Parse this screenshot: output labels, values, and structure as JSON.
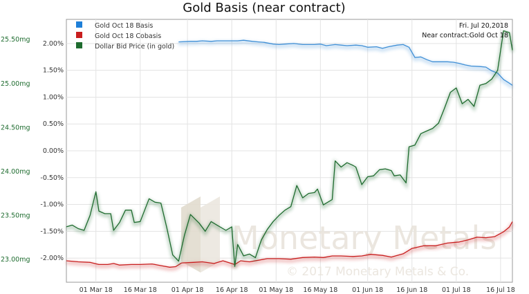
{
  "chart_data": {
    "type": "line",
    "title": "Gold Basis (near contract)",
    "x_ticks": [
      "01 Mar 18",
      "16 Mar 18",
      "01 Apr 18",
      "16 Apr 18",
      "01 May 18",
      "16 May 18",
      "01 Jun 18",
      "16 Jun 18",
      "01 Jul 18",
      "16 Jul 18"
    ],
    "x_range": [
      "2018-02-19",
      "2018-07-20"
    ],
    "y_right": {
      "ticks": [
        "-2.00%",
        "-1.50%",
        "-1.00%",
        "-0.50%",
        "0.00%",
        "0.50%",
        "1.00%",
        "1.50%",
        "2.00%"
      ],
      "tick_values": [
        -2.0,
        -1.5,
        -1.0,
        -0.5,
        0.0,
        0.5,
        1.0,
        1.5,
        2.0
      ],
      "range": [
        -2.45,
        2.45
      ]
    },
    "y_left": {
      "ticks": [
        "23.00mg",
        "23.50mg",
        "24.00mg",
        "24.50mg",
        "25.00mg",
        "25.50mg"
      ],
      "tick_values": [
        23.0,
        23.5,
        24.0,
        24.5,
        25.0,
        25.5
      ],
      "range": [
        22.74,
        25.73
      ]
    },
    "grid": true,
    "legend_position": "top-left",
    "annotations": [
      "Fri. Jul 20,2018",
      "Near contract:Gold Oct 18"
    ],
    "watermark": [
      "Monetary Metals",
      "© 2017 Monetary Metals & Co."
    ],
    "series": [
      {
        "name": "Gold Oct 18 Basis",
        "color": "#3f8fd6",
        "axis": "right",
        "points": [
          [
            "2018-03-29",
            2.03
          ],
          [
            "2018-04-02",
            2.04
          ],
          [
            "2018-04-04",
            2.04
          ],
          [
            "2018-04-06",
            2.05
          ],
          [
            "2018-04-09",
            2.04
          ],
          [
            "2018-04-11",
            2.05
          ],
          [
            "2018-04-13",
            2.05
          ],
          [
            "2018-04-16",
            2.05
          ],
          [
            "2018-04-18",
            2.05
          ],
          [
            "2018-04-20",
            2.06
          ],
          [
            "2018-04-23",
            2.04
          ],
          [
            "2018-04-25",
            2.03
          ],
          [
            "2018-04-27",
            2.02
          ],
          [
            "2018-04-30",
            1.99
          ],
          [
            "2018-05-02",
            1.98
          ],
          [
            "2018-05-04",
            1.99
          ],
          [
            "2018-05-07",
            2.0
          ],
          [
            "2018-05-10",
            1.98
          ],
          [
            "2018-05-14",
            1.98
          ],
          [
            "2018-05-16",
            1.99
          ],
          [
            "2018-05-18",
            1.96
          ],
          [
            "2018-05-21",
            1.98
          ],
          [
            "2018-05-23",
            1.97
          ],
          [
            "2018-05-25",
            1.96
          ],
          [
            "2018-05-28",
            1.97
          ],
          [
            "2018-05-30",
            1.96
          ],
          [
            "2018-06-01",
            1.93
          ],
          [
            "2018-06-04",
            1.94
          ],
          [
            "2018-06-06",
            1.91
          ],
          [
            "2018-06-08",
            1.94
          ],
          [
            "2018-06-11",
            1.97
          ],
          [
            "2018-06-13",
            1.98
          ],
          [
            "2018-06-15",
            1.93
          ],
          [
            "2018-06-17",
            1.74
          ],
          [
            "2018-06-19",
            1.75
          ],
          [
            "2018-06-21",
            1.7
          ],
          [
            "2018-06-23",
            1.66
          ],
          [
            "2018-06-25",
            1.66
          ],
          [
            "2018-06-28",
            1.66
          ],
          [
            "2018-06-30",
            1.65
          ],
          [
            "2018-07-02",
            1.63
          ],
          [
            "2018-07-04",
            1.6
          ],
          [
            "2018-07-06",
            1.58
          ],
          [
            "2018-07-09",
            1.57
          ],
          [
            "2018-07-11",
            1.56
          ],
          [
            "2018-07-13",
            1.49
          ],
          [
            "2018-07-15",
            1.45
          ],
          [
            "2018-07-17",
            1.33
          ],
          [
            "2018-07-19",
            1.26
          ],
          [
            "2018-07-20",
            1.22
          ]
        ]
      },
      {
        "name": "Gold Oct 18 Cobasis",
        "color": "#c81e1e",
        "axis": "right",
        "points": [
          [
            "2018-02-19",
            -2.05
          ],
          [
            "2018-02-23",
            -2.07
          ],
          [
            "2018-02-27",
            -2.08
          ],
          [
            "2018-03-02",
            -2.12
          ],
          [
            "2018-03-05",
            -2.12
          ],
          [
            "2018-03-07",
            -2.1
          ],
          [
            "2018-03-09",
            -2.13
          ],
          [
            "2018-03-13",
            -2.12
          ],
          [
            "2018-03-16",
            -2.12
          ],
          [
            "2018-03-20",
            -2.11
          ],
          [
            "2018-03-23",
            -2.14
          ],
          [
            "2018-03-26",
            -2.17
          ],
          [
            "2018-03-28",
            -2.16
          ],
          [
            "2018-03-30",
            -2.09
          ],
          [
            "2018-04-03",
            -2.08
          ],
          [
            "2018-04-06",
            -2.07
          ],
          [
            "2018-04-10",
            -2.1
          ],
          [
            "2018-04-13",
            -2.05
          ],
          [
            "2018-04-17",
            -2.12
          ],
          [
            "2018-04-19",
            -2.05
          ],
          [
            "2018-04-22",
            -2.07
          ],
          [
            "2018-04-25",
            -2.04
          ],
          [
            "2018-04-28",
            -2.01
          ],
          [
            "2018-05-02",
            -2.01
          ],
          [
            "2018-05-06",
            -2.02
          ],
          [
            "2018-05-10",
            -1.99
          ],
          [
            "2018-05-14",
            -1.98
          ],
          [
            "2018-05-17",
            -1.99
          ],
          [
            "2018-05-20",
            -1.96
          ],
          [
            "2018-05-23",
            -1.96
          ],
          [
            "2018-05-27",
            -1.97
          ],
          [
            "2018-05-30",
            -1.96
          ],
          [
            "2018-06-02",
            -1.93
          ],
          [
            "2018-06-06",
            -1.95
          ],
          [
            "2018-06-09",
            -1.98
          ],
          [
            "2018-06-13",
            -1.92
          ],
          [
            "2018-06-16",
            -1.82
          ],
          [
            "2018-06-20",
            -1.77
          ],
          [
            "2018-06-24",
            -1.77
          ],
          [
            "2018-06-28",
            -1.72
          ],
          [
            "2018-07-02",
            -1.7
          ],
          [
            "2018-07-05",
            -1.66
          ],
          [
            "2018-07-08",
            -1.61
          ],
          [
            "2018-07-11",
            -1.62
          ],
          [
            "2018-07-14",
            -1.6
          ],
          [
            "2018-07-17",
            -1.51
          ],
          [
            "2018-07-19",
            -1.42
          ],
          [
            "2018-07-20",
            -1.32
          ]
        ]
      },
      {
        "name": "Dollar Bid Price (in gold)",
        "color": "#1e6b2e",
        "axis": "left",
        "points": [
          [
            "2018-02-19",
            23.37
          ],
          [
            "2018-02-21",
            23.39
          ],
          [
            "2018-02-23",
            23.35
          ],
          [
            "2018-02-25",
            23.33
          ],
          [
            "2018-02-27",
            23.5
          ],
          [
            "2018-03-01",
            23.77
          ],
          [
            "2018-03-02",
            23.55
          ],
          [
            "2018-03-04",
            23.52
          ],
          [
            "2018-03-06",
            23.52
          ],
          [
            "2018-03-07",
            23.33
          ],
          [
            "2018-03-09",
            23.42
          ],
          [
            "2018-03-11",
            23.56
          ],
          [
            "2018-03-13",
            23.56
          ],
          [
            "2018-03-14",
            23.42
          ],
          [
            "2018-03-16",
            23.43
          ],
          [
            "2018-03-19",
            23.69
          ],
          [
            "2018-03-21",
            23.65
          ],
          [
            "2018-03-23",
            23.64
          ],
          [
            "2018-03-25",
            23.36
          ],
          [
            "2018-03-27",
            23.05
          ],
          [
            "2018-03-29",
            22.98
          ],
          [
            "2018-03-31",
            23.28
          ],
          [
            "2018-04-02",
            23.51
          ],
          [
            "2018-04-05",
            23.41
          ],
          [
            "2018-04-07",
            23.32
          ],
          [
            "2018-04-09",
            23.43
          ],
          [
            "2018-04-11",
            23.39
          ],
          [
            "2018-04-13",
            23.35
          ],
          [
            "2018-04-14",
            23.33
          ],
          [
            "2018-04-16",
            23.37
          ],
          [
            "2018-04-17",
            22.92
          ],
          [
            "2018-04-18",
            23.17
          ],
          [
            "2018-04-20",
            23.04
          ],
          [
            "2018-04-22",
            23.06
          ],
          [
            "2018-04-24",
            23.02
          ],
          [
            "2018-04-26",
            23.22
          ],
          [
            "2018-04-28",
            23.34
          ],
          [
            "2018-04-30",
            23.43
          ],
          [
            "2018-05-02",
            23.5
          ],
          [
            "2018-05-04",
            23.56
          ],
          [
            "2018-05-06",
            23.6
          ],
          [
            "2018-05-08",
            23.84
          ],
          [
            "2018-05-10",
            23.7
          ],
          [
            "2018-05-12",
            23.75
          ],
          [
            "2018-05-14",
            23.76
          ],
          [
            "2018-05-15",
            23.8
          ],
          [
            "2018-05-17",
            23.62
          ],
          [
            "2018-05-18",
            23.64
          ],
          [
            "2018-05-20",
            23.68
          ],
          [
            "2018-05-21",
            24.12
          ],
          [
            "2018-05-23",
            24.05
          ],
          [
            "2018-05-25",
            24.1
          ],
          [
            "2018-05-27",
            24.07
          ],
          [
            "2018-05-28",
            24.05
          ],
          [
            "2018-05-30",
            23.85
          ],
          [
            "2018-06-01",
            23.94
          ],
          [
            "2018-06-03",
            23.95
          ],
          [
            "2018-06-05",
            24.02
          ],
          [
            "2018-06-07",
            24.03
          ],
          [
            "2018-06-09",
            24.01
          ],
          [
            "2018-06-10",
            23.95
          ],
          [
            "2018-06-12",
            23.96
          ],
          [
            "2018-06-14",
            23.87
          ],
          [
            "2018-06-15",
            24.28
          ],
          [
            "2018-06-17",
            24.3
          ],
          [
            "2018-06-19",
            24.43
          ],
          [
            "2018-06-21",
            24.46
          ],
          [
            "2018-06-23",
            24.49
          ],
          [
            "2018-06-25",
            24.55
          ],
          [
            "2018-06-27",
            24.72
          ],
          [
            "2018-06-29",
            24.9
          ],
          [
            "2018-07-01",
            24.95
          ],
          [
            "2018-07-03",
            24.77
          ],
          [
            "2018-07-05",
            24.82
          ],
          [
            "2018-07-07",
            24.74
          ],
          [
            "2018-07-09",
            24.98
          ],
          [
            "2018-07-11",
            25.0
          ],
          [
            "2018-07-13",
            25.05
          ],
          [
            "2018-07-15",
            25.15
          ],
          [
            "2018-07-17",
            25.6
          ],
          [
            "2018-07-19",
            25.58
          ],
          [
            "2018-07-20",
            25.38
          ]
        ]
      }
    ]
  }
}
